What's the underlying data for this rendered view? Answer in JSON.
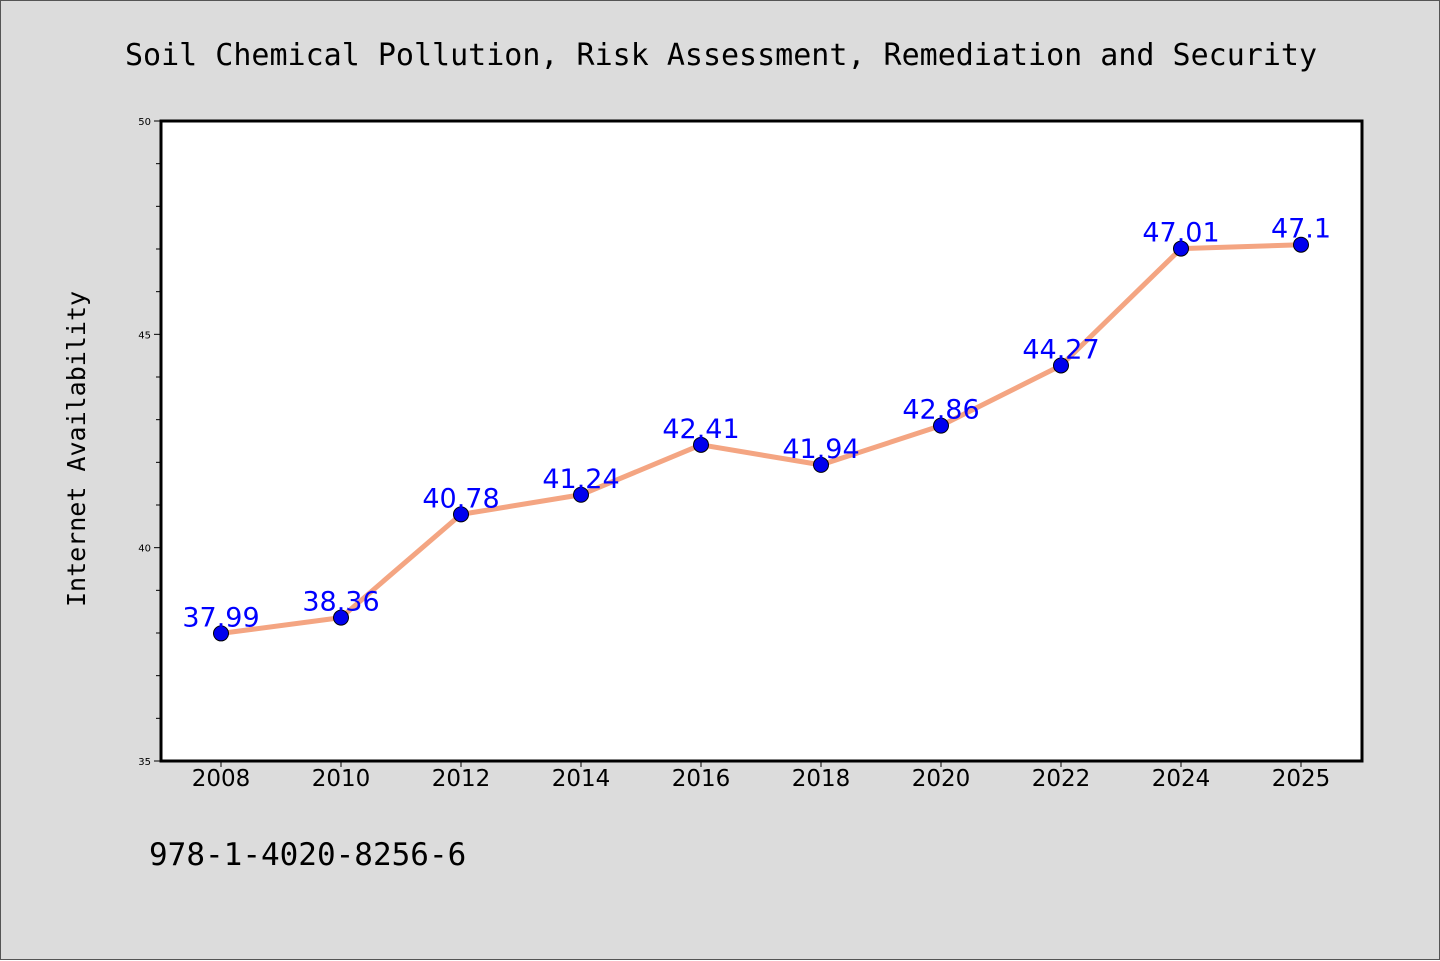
{
  "chart_data": {
    "type": "line",
    "title": "Soil Chemical Pollution, Risk Assessment, Remediation and Security",
    "xlabel": "",
    "ylabel": "Internet Availability",
    "categories": [
      "2008",
      "2010",
      "2012",
      "2014",
      "2016",
      "2018",
      "2020",
      "2022",
      "2024",
      "2025"
    ],
    "series": [
      {
        "values": [
          37.99,
          38.36,
          40.78,
          41.24,
          42.41,
          41.94,
          42.86,
          44.27,
          47.01,
          47.1
        ],
        "labels": [
          "37.99",
          "38.36",
          "40.78",
          "41.24",
          "42.41",
          "41.94",
          "42.86",
          "44.27",
          "47.01",
          "47.1"
        ]
      }
    ],
    "ylim": [
      35,
      50
    ],
    "yticks": [
      "35",
      "40",
      "45",
      "50"
    ],
    "y_minor_step": 1,
    "grid": false,
    "line_color": "#f4a582",
    "marker_color": "#0000ee",
    "label_color": "#0000ff",
    "annotation": "978-1-4020-8256-6"
  }
}
